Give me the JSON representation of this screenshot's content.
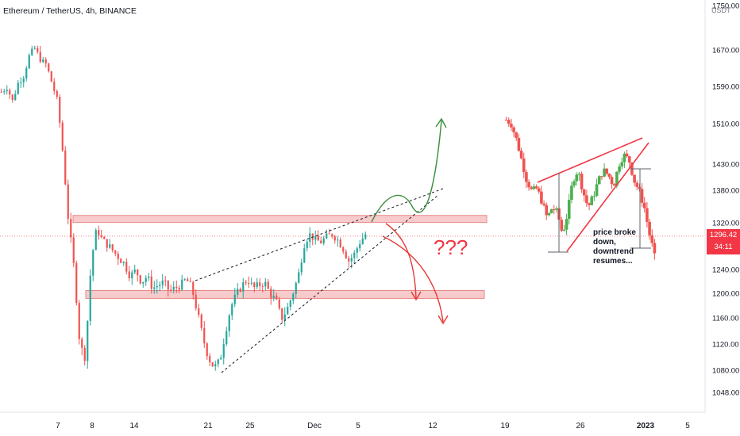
{
  "chart_data": {
    "type": "candlestick",
    "title": "Ethereum / TetherUS, 4h, BINANCE",
    "unit": "USDT",
    "current_price": "1296.42",
    "countdown": "34:11",
    "ylim": [
      1020,
      1750
    ],
    "y_ticks": [
      "1750.00",
      "1670.00",
      "1590.00",
      "1510.00",
      "1430.00",
      "1380.00",
      "1320.00",
      "1280.00",
      "1240.00",
      "1200.00",
      "1160.00",
      "1120.00",
      "1080.00",
      "1048.00"
    ],
    "x_ticks": [
      "7",
      "8",
      "14",
      "21",
      "25",
      "Dec",
      "5",
      "12",
      "19",
      "26",
      "2023",
      "5"
    ],
    "bold_x_tick": "2023",
    "annotations": {
      "question": "???",
      "note": "price broke down, downtrend resumes..."
    },
    "colors": {
      "up": "#26a69a",
      "down": "#ef5350",
      "up_light": "#4caf50",
      "zone": "#f6c2c2",
      "zone_border": "#e57373",
      "projection_up": "#388e3c",
      "projection_down": "#e53935"
    },
    "zones": [
      {
        "name": "upper-zone",
        "low": 1322,
        "high": 1335
      },
      {
        "name": "lower-zone",
        "low": 1193,
        "high": 1206
      }
    ],
    "segments": [
      {
        "name": "main",
        "path": [
          1580,
          1590,
          1560,
          1600,
          1615,
          1660,
          1675,
          1650,
          1640,
          1600,
          1560,
          1450,
          1320,
          1240,
          1120,
          1100,
          1250,
          1310,
          1290,
          1280,
          1270,
          1260,
          1250,
          1230,
          1240,
          1220,
          1230,
          1210,
          1215,
          1220,
          1205,
          1210,
          1215,
          1225,
          1210,
          1170,
          1130,
          1100,
          1085,
          1095,
          1140,
          1180,
          1200,
          1215,
          1225,
          1210,
          1215,
          1220,
          1200,
          1190,
          1160,
          1175,
          1200,
          1230,
          1280,
          1300,
          1290,
          1285,
          1295,
          1300,
          1290,
          1275,
          1255,
          1265,
          1285,
          1300
        ]
      },
      {
        "name": "recent",
        "path": [
          1520,
          1510,
          1480,
          1440,
          1400,
          1380,
          1385,
          1360,
          1330,
          1350,
          1340,
          1300,
          1340,
          1400,
          1420,
          1380,
          1350,
          1370,
          1400,
          1420,
          1410,
          1390,
          1430,
          1450,
          1440,
          1400,
          1380,
          1350,
          1300,
          1260
        ]
      }
    ]
  }
}
